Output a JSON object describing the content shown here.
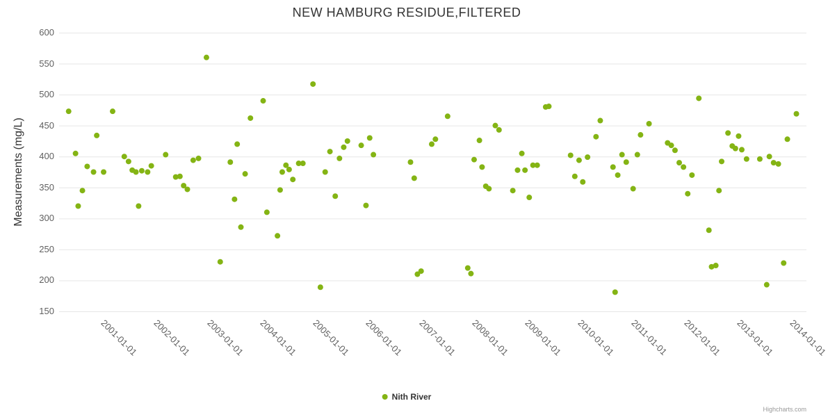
{
  "credit": "Highcharts.com",
  "colors": {
    "point": "#84b414",
    "grid": "#e6e6e6",
    "tick_label": "#606060",
    "title": "#333333",
    "credit": "#999999"
  },
  "chart_data": {
    "type": "scatter",
    "title": "NEW HAMBURG RESIDUE,FILTERED",
    "xlabel": "",
    "ylabel": "Measurements (mg/L)",
    "ylim": [
      150,
      600
    ],
    "ytick_interval": 50,
    "xlim": [
      2000.0,
      2014.1
    ],
    "grid": "horizontal",
    "legend_position": "bottom-center",
    "xtick_positions": [
      2001,
      2002,
      2003,
      2004,
      2005,
      2006,
      2007,
      2008,
      2009,
      2010,
      2011,
      2012,
      2013,
      2014
    ],
    "xtick_labels": [
      "2001-01-01",
      "2002-01-01",
      "2003-01-01",
      "2004-01-01",
      "2005-01-01",
      "2006-01-01",
      "2007-01-01",
      "2008-01-01",
      "2009-01-01",
      "2010-01-01",
      "2011-01-01",
      "2012-01-01",
      "2013-01-01",
      "2014-01-01"
    ],
    "series": [
      {
        "name": "Nith River",
        "color": "#84b414",
        "points": [
          [
            2000.18,
            473
          ],
          [
            2000.31,
            405
          ],
          [
            2000.36,
            320
          ],
          [
            2000.44,
            345
          ],
          [
            2000.53,
            384
          ],
          [
            2000.65,
            375
          ],
          [
            2000.71,
            434
          ],
          [
            2000.84,
            375
          ],
          [
            2001.01,
            473
          ],
          [
            2001.23,
            400
          ],
          [
            2001.31,
            392
          ],
          [
            2001.38,
            378
          ],
          [
            2001.45,
            375
          ],
          [
            2001.5,
            320
          ],
          [
            2001.56,
            377
          ],
          [
            2001.67,
            375
          ],
          [
            2001.74,
            385
          ],
          [
            2002.01,
            403
          ],
          [
            2002.2,
            367
          ],
          [
            2002.28,
            368
          ],
          [
            2002.35,
            353
          ],
          [
            2002.42,
            347
          ],
          [
            2002.53,
            394
          ],
          [
            2002.63,
            397
          ],
          [
            2002.78,
            560
          ],
          [
            2003.04,
            230
          ],
          [
            2003.23,
            391
          ],
          [
            2003.31,
            331
          ],
          [
            2003.36,
            420
          ],
          [
            2003.43,
            286
          ],
          [
            2003.51,
            372
          ],
          [
            2003.61,
            462
          ],
          [
            2003.85,
            490
          ],
          [
            2003.92,
            310
          ],
          [
            2004.12,
            272
          ],
          [
            2004.17,
            346
          ],
          [
            2004.21,
            375
          ],
          [
            2004.28,
            386
          ],
          [
            2004.34,
            379
          ],
          [
            2004.41,
            363
          ],
          [
            2004.52,
            389
          ],
          [
            2004.6,
            389
          ],
          [
            2004.79,
            517
          ],
          [
            2004.93,
            189
          ],
          [
            2005.02,
            375
          ],
          [
            2005.11,
            408
          ],
          [
            2005.21,
            336
          ],
          [
            2005.29,
            397
          ],
          [
            2005.37,
            415
          ],
          [
            2005.44,
            425
          ],
          [
            2005.7,
            418
          ],
          [
            2005.79,
            321
          ],
          [
            2005.86,
            430
          ],
          [
            2005.93,
            403
          ],
          [
            2006.63,
            391
          ],
          [
            2006.7,
            365
          ],
          [
            2006.76,
            210
          ],
          [
            2006.83,
            215
          ],
          [
            2007.03,
            420
          ],
          [
            2007.1,
            428
          ],
          [
            2007.33,
            465
          ],
          [
            2007.71,
            220
          ],
          [
            2007.77,
            211
          ],
          [
            2007.83,
            395
          ],
          [
            2007.93,
            426
          ],
          [
            2007.98,
            383
          ],
          [
            2008.05,
            352
          ],
          [
            2008.11,
            348
          ],
          [
            2008.23,
            450
          ],
          [
            2008.3,
            443
          ],
          [
            2008.56,
            345
          ],
          [
            2008.65,
            378
          ],
          [
            2008.73,
            405
          ],
          [
            2008.79,
            378
          ],
          [
            2008.87,
            334
          ],
          [
            2008.94,
            386
          ],
          [
            2009.02,
            386
          ],
          [
            2009.18,
            480
          ],
          [
            2009.24,
            481
          ],
          [
            2009.65,
            402
          ],
          [
            2009.73,
            368
          ],
          [
            2009.81,
            394
          ],
          [
            2009.88,
            359
          ],
          [
            2009.97,
            399
          ],
          [
            2010.13,
            432
          ],
          [
            2010.21,
            458
          ],
          [
            2010.45,
            383
          ],
          [
            2010.49,
            181
          ],
          [
            2010.54,
            370
          ],
          [
            2010.62,
            403
          ],
          [
            2010.7,
            391
          ],
          [
            2010.83,
            348
          ],
          [
            2010.91,
            403
          ],
          [
            2010.97,
            435
          ],
          [
            2011.13,
            453
          ],
          [
            2011.48,
            422
          ],
          [
            2011.55,
            418
          ],
          [
            2011.62,
            410
          ],
          [
            2011.7,
            390
          ],
          [
            2011.78,
            383
          ],
          [
            2011.86,
            340
          ],
          [
            2011.94,
            370
          ],
          [
            2012.07,
            494
          ],
          [
            2012.26,
            281
          ],
          [
            2012.31,
            222
          ],
          [
            2012.39,
            224
          ],
          [
            2012.45,
            345
          ],
          [
            2012.5,
            392
          ],
          [
            2012.62,
            438
          ],
          [
            2012.7,
            417
          ],
          [
            2012.76,
            413
          ],
          [
            2012.82,
            433
          ],
          [
            2012.88,
            411
          ],
          [
            2012.97,
            396
          ],
          [
            2013.22,
            396
          ],
          [
            2013.35,
            193
          ],
          [
            2013.4,
            400
          ],
          [
            2013.48,
            390
          ],
          [
            2013.57,
            388
          ],
          [
            2013.67,
            228
          ],
          [
            2013.74,
            428
          ],
          [
            2013.91,
            469
          ]
        ]
      }
    ]
  }
}
